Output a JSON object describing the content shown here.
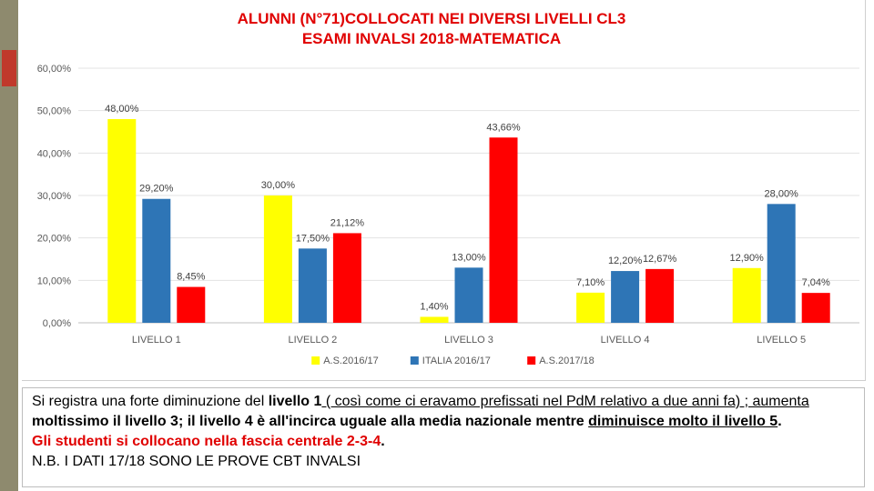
{
  "chart_data": {
    "type": "bar",
    "title_line1": "ALUNNI (N°71)COLLOCATI NEI DIVERSI LIVELLI CL3",
    "title_line2": "ESAMI INVALSI 2018-MATEMATICA",
    "categories": [
      "LIVELLO 1",
      "LIVELLO 2",
      "LIVELLO 3",
      "LIVELLO 4",
      "LIVELLO 5"
    ],
    "series": [
      {
        "name": "A.S.2016/17",
        "color": "#ffff00",
        "values": [
          48.0,
          30.0,
          1.4,
          7.1,
          12.9
        ],
        "labels": [
          "48,00%",
          "30,00%",
          "1,40%",
          "7,10%",
          "12,90%"
        ]
      },
      {
        "name": "ITALIA 2016/17",
        "color": "#2e75b6",
        "values": [
          29.2,
          17.5,
          13.0,
          12.2,
          28.0
        ],
        "labels": [
          "29,20%",
          "17,50%",
          "13,00%",
          "12,20%",
          "28,00%"
        ]
      },
      {
        "name": "A.S.2017/18",
        "color": "#ff0000",
        "values": [
          8.45,
          21.12,
          43.66,
          12.67,
          7.04
        ],
        "labels": [
          "8,45%",
          "21,12%",
          "43,66%",
          "12,67%",
          "7,04%"
        ]
      }
    ],
    "yticks": [
      "0,00%",
      "10,00%",
      "20,00%",
      "30,00%",
      "40,00%",
      "50,00%",
      "60,00%"
    ],
    "ylim": [
      0,
      60
    ],
    "grid": true,
    "legend_position": "bottom"
  },
  "text_box": {
    "line1_a": "Si registra una forte diminuzione del ",
    "line1_b": "livello 1",
    "line1_c": " ( così come ci eravamo prefissati nel Pd",
    "line1_d": "M",
    "line1_e": " relativo a due anni fa) ; aumenta",
    "line2_a": "moltissimo il livello 3; il livello 4 è all'incirca uguale alla media nazionale mentre ",
    "line2_b": "diminuisce molto il ",
    "line2_c": "livello 5",
    "line2_d": ".",
    "line3_a": "Gli studenti si collocano nella fascia centrale 2-3-4",
    "line3_b": ".",
    "line4": "N.B. I DATI 17/18 SONO LE PROVE CBT INVALSI"
  }
}
